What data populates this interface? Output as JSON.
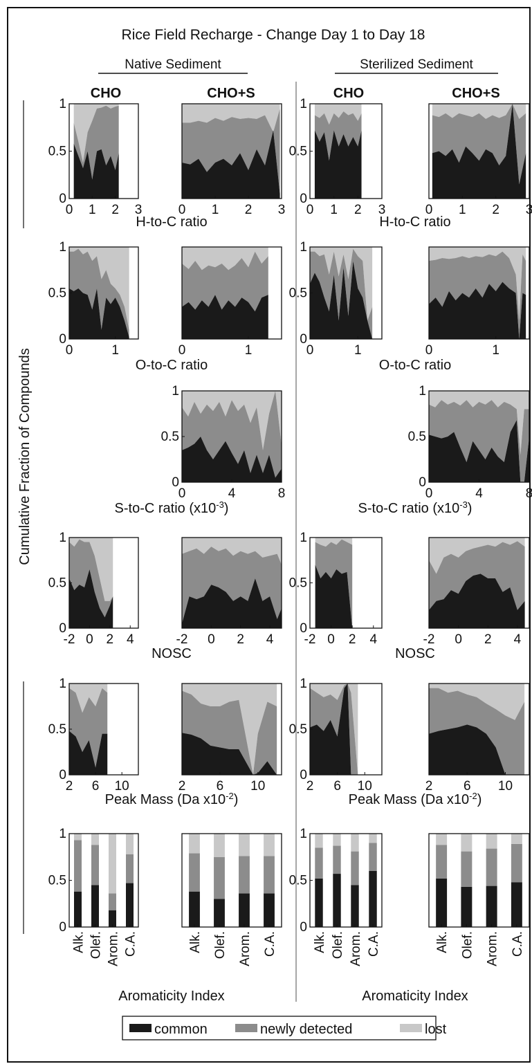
{
  "figure": {
    "title": "Rice Field Recharge - Change Day 1 to Day 18",
    "y_axis_label": "Cumulative Fraction of Compounds",
    "groups": [
      "Native Sediment",
      "Sterilized Sediment"
    ],
    "column_headers": [
      "CHO",
      "CHO+S",
      "CHO",
      "CHO+S"
    ],
    "rows": [
      {
        "id": "hc",
        "xlabel": "H-to-C ratio",
        "xticks": [
          "0",
          "1",
          "2",
          "3"
        ],
        "xlim": [
          0,
          3
        ]
      },
      {
        "id": "oc",
        "xlabel": "O-to-C ratio",
        "xticks": [
          "0",
          "1"
        ],
        "xlim": [
          0,
          1.5
        ]
      },
      {
        "id": "sc",
        "xlabel": "S-to-C ratio (x10",
        "xlabel_sup": "-3",
        "xlabel_tail": ")",
        "xticks": [
          "0",
          "4",
          "8"
        ],
        "xlim": [
          0,
          8
        ]
      },
      {
        "id": "nosc",
        "xlabel": "NOSC",
        "xticks": [
          "-2",
          "0",
          "2",
          "4"
        ],
        "xlim": [
          -2,
          4.8
        ]
      },
      {
        "id": "mass",
        "xlabel": "Peak Mass (Da x10",
        "xlabel_sup": "-2",
        "xlabel_tail": ")",
        "xticks": [
          "2",
          "6",
          "10"
        ],
        "xlim": [
          2,
          12.5
        ]
      },
      {
        "id": "arom",
        "xlabel": "Aromaticity Index",
        "xticks": [
          "Alk.",
          "Olef.",
          "Arom.",
          "C.A."
        ]
      }
    ],
    "yticks": [
      "0",
      "0.5",
      "1"
    ],
    "legend": [
      {
        "label": "common",
        "color": "#1a1a1a"
      },
      {
        "label": "newly detected",
        "color": "#8c8c8c"
      },
      {
        "label": "lost",
        "color": "#c8c8c8"
      }
    ]
  },
  "chart_data": [
    {
      "type": "area",
      "panel": "native-cho-hc",
      "x": [
        0.2,
        0.4,
        0.6,
        0.8,
        1.0,
        1.2,
        1.4,
        1.6,
        1.8,
        2.0,
        2.15
      ],
      "common": [
        0.58,
        0.45,
        0.32,
        0.5,
        0.2,
        0.5,
        0.52,
        0.35,
        0.45,
        0.3,
        0.48
      ],
      "cum_new": [
        0.8,
        0.6,
        0.38,
        0.7,
        0.82,
        0.95,
        0.96,
        0.98,
        0.95,
        0.97,
        0.98
      ],
      "xlim": [
        0,
        3
      ],
      "ylim": [
        0,
        1
      ]
    },
    {
      "type": "area",
      "panel": "native-chos-hc",
      "x": [
        0,
        0.25,
        0.5,
        0.75,
        1.0,
        1.25,
        1.5,
        1.75,
        2.0,
        2.25,
        2.5,
        2.75,
        2.95
      ],
      "common": [
        0.38,
        0.36,
        0.42,
        0.28,
        0.38,
        0.42,
        0.35,
        0.48,
        0.3,
        0.52,
        0.35,
        0.72,
        0.05
      ],
      "cum_new": [
        0.8,
        0.8,
        0.82,
        0.8,
        0.85,
        0.82,
        0.86,
        0.84,
        0.85,
        0.84,
        0.88,
        0.7,
        0.95
      ],
      "xlim": [
        0,
        3
      ],
      "ylim": [
        0,
        1
      ]
    },
    {
      "type": "area",
      "panel": "steril-cho-hc",
      "x": [
        0.2,
        0.4,
        0.6,
        0.8,
        1.0,
        1.2,
        1.4,
        1.6,
        1.8,
        2.0,
        2.15
      ],
      "common": [
        0.72,
        0.6,
        0.7,
        0.4,
        0.72,
        0.55,
        0.68,
        0.55,
        0.65,
        0.55,
        0.72
      ],
      "cum_new": [
        0.88,
        0.85,
        0.9,
        0.78,
        0.9,
        0.85,
        0.92,
        0.88,
        0.9,
        0.82,
        0.9
      ],
      "xlim": [
        0,
        3
      ],
      "ylim": [
        0,
        1
      ]
    },
    {
      "type": "area",
      "panel": "steril-chos-hc",
      "x": [
        0.1,
        0.3,
        0.5,
        0.7,
        0.9,
        1.1,
        1.3,
        1.5,
        1.7,
        1.9,
        2.1,
        2.3,
        2.5,
        2.7,
        2.9
      ],
      "common": [
        0.48,
        0.5,
        0.45,
        0.52,
        0.38,
        0.55,
        0.48,
        0.4,
        0.52,
        0.48,
        0.35,
        0.45,
        1.0,
        0.15,
        0.48
      ],
      "cum_new": [
        0.88,
        0.86,
        0.9,
        0.85,
        0.9,
        0.88,
        0.86,
        0.9,
        0.84,
        0.88,
        0.85,
        0.88,
        1.0,
        0.84,
        0.9
      ],
      "xlim": [
        0,
        3
      ],
      "ylim": [
        0,
        1
      ]
    },
    {
      "type": "area",
      "panel": "native-cho-oc",
      "x": [
        0,
        0.1,
        0.2,
        0.3,
        0.4,
        0.5,
        0.6,
        0.7,
        0.8,
        0.9,
        1.0,
        1.1,
        1.2,
        1.3
      ],
      "common": [
        0.55,
        0.52,
        0.55,
        0.5,
        0.48,
        0.32,
        0.55,
        0.1,
        0.45,
        0.38,
        0.45,
        0.35,
        0.2,
        0.02
      ],
      "cum_new": [
        0.95,
        0.95,
        0.98,
        0.92,
        0.95,
        0.85,
        0.9,
        0.65,
        0.75,
        0.6,
        0.55,
        0.48,
        0.35,
        0.1
      ],
      "xlim": [
        0,
        1.5
      ],
      "ylim": [
        0,
        1
      ]
    },
    {
      "type": "area",
      "panel": "native-chos-oc",
      "x": [
        0,
        0.1,
        0.2,
        0.3,
        0.4,
        0.5,
        0.6,
        0.7,
        0.8,
        0.9,
        1.0,
        1.1,
        1.2,
        1.3
      ],
      "common": [
        0.35,
        0.4,
        0.32,
        0.42,
        0.35,
        0.48,
        0.32,
        0.42,
        0.35,
        0.45,
        0.4,
        0.3,
        0.45,
        0.48
      ],
      "cum_new": [
        0.82,
        0.76,
        0.85,
        0.75,
        0.8,
        0.78,
        0.82,
        0.75,
        0.8,
        0.88,
        0.78,
        0.95,
        0.82,
        0.9
      ],
      "xlim": [
        0,
        1.5
      ],
      "ylim": [
        0,
        1
      ]
    },
    {
      "type": "area",
      "panel": "steril-cho-oc",
      "x": [
        0,
        0.1,
        0.2,
        0.3,
        0.4,
        0.5,
        0.6,
        0.7,
        0.8,
        0.9,
        1.0,
        1.1,
        1.2,
        1.3
      ],
      "common": [
        0.6,
        0.72,
        0.62,
        0.45,
        0.3,
        0.7,
        0.2,
        0.78,
        0.25,
        0.85,
        0.55,
        0.45,
        0.2,
        0.0
      ],
      "cum_new": [
        0.95,
        0.95,
        0.9,
        0.92,
        0.7,
        0.95,
        0.68,
        0.92,
        0.65,
        0.98,
        0.9,
        0.85,
        0.2,
        0.35
      ],
      "xlim": [
        0,
        1.5
      ],
      "ylim": [
        0,
        1
      ]
    },
    {
      "type": "area",
      "panel": "steril-chos-oc",
      "x": [
        0,
        0.1,
        0.2,
        0.3,
        0.4,
        0.5,
        0.6,
        0.7,
        0.8,
        0.9,
        1.0,
        1.1,
        1.2,
        1.3,
        1.35,
        1.4,
        1.45
      ],
      "common": [
        0.38,
        0.45,
        0.35,
        0.52,
        0.42,
        0.5,
        0.45,
        0.55,
        0.45,
        0.6,
        0.52,
        0.62,
        0.55,
        0.5,
        0.0,
        0.5,
        0.48
      ],
      "cum_new": [
        0.85,
        0.86,
        0.88,
        0.87,
        0.88,
        0.9,
        0.88,
        0.9,
        0.89,
        0.92,
        0.9,
        0.95,
        0.88,
        0.7,
        0.2,
        0.92,
        0.85
      ],
      "xlim": [
        0,
        1.5
      ],
      "ylim": [
        0,
        1
      ]
    },
    {
      "type": "area",
      "panel": "native-chos-sc",
      "x": [
        0,
        0.5,
        1.0,
        1.5,
        2.0,
        2.5,
        3.0,
        3.5,
        4.0,
        4.5,
        5.0,
        5.5,
        6.0,
        6.5,
        7.0,
        7.5,
        8.0
      ],
      "common": [
        0.35,
        0.38,
        0.42,
        0.5,
        0.35,
        0.25,
        0.35,
        0.45,
        0.32,
        0.2,
        0.35,
        0.1,
        0.3,
        0.1,
        0.3,
        0.05,
        0.15
      ],
      "cum_new": [
        0.82,
        0.72,
        0.88,
        0.75,
        0.85,
        0.78,
        0.88,
        0.72,
        0.9,
        0.78,
        0.85,
        0.65,
        0.82,
        0.35,
        0.75,
        1.0,
        0.4
      ],
      "xlim": [
        0,
        8
      ],
      "ylim": [
        0,
        1
      ]
    },
    {
      "type": "area",
      "panel": "steril-chos-sc",
      "x": [
        0,
        0.5,
        1.0,
        1.5,
        2.0,
        2.5,
        3.0,
        3.5,
        4.0,
        4.5,
        5.0,
        5.5,
        6.0,
        6.5,
        7.0,
        7.3,
        7.6,
        8.0
      ],
      "common": [
        0.52,
        0.5,
        0.48,
        0.5,
        0.55,
        0.38,
        0.22,
        0.45,
        0.35,
        0.25,
        0.38,
        0.28,
        0.22,
        0.55,
        0.68,
        0.0,
        0.0,
        0.5
      ],
      "cum_new": [
        0.85,
        0.82,
        0.9,
        0.85,
        0.88,
        0.84,
        0.9,
        0.82,
        0.88,
        0.85,
        0.9,
        0.82,
        0.88,
        0.85,
        0.8,
        0.3,
        0.8,
        0.8
      ],
      "xlim": [
        0,
        8
      ],
      "ylim": [
        0,
        1
      ]
    },
    {
      "type": "area",
      "panel": "native-cho-nosc",
      "x": [
        -2,
        -1.5,
        -1.0,
        -0.5,
        0.0,
        0.5,
        1.0,
        1.5,
        2.0,
        2.3
      ],
      "common": [
        0.55,
        0.42,
        0.48,
        0.45,
        0.65,
        0.4,
        0.22,
        0.12,
        0.25,
        0.35
      ],
      "cum_new": [
        0.95,
        0.9,
        0.98,
        0.95,
        0.95,
        0.8,
        0.55,
        0.3,
        0.3,
        0.35
      ],
      "xlim": [
        -2,
        4.8
      ],
      "ylim": [
        0,
        1
      ]
    },
    {
      "type": "area",
      "panel": "native-chos-nosc",
      "x": [
        -2,
        -1.5,
        -1.0,
        -0.5,
        0.0,
        0.5,
        1.0,
        1.5,
        2.0,
        2.5,
        3.0,
        3.5,
        4.0,
        4.5,
        4.8
      ],
      "common": [
        0.05,
        0.35,
        0.32,
        0.35,
        0.48,
        0.45,
        0.4,
        0.3,
        0.35,
        0.3,
        0.55,
        0.3,
        0.35,
        0.1,
        0.22
      ],
      "cum_new": [
        0.82,
        0.85,
        0.88,
        0.82,
        0.9,
        0.85,
        0.88,
        0.8,
        0.85,
        0.82,
        0.85,
        0.78,
        0.8,
        0.82,
        0.7
      ],
      "xlim": [
        -2,
        4.8
      ],
      "ylim": [
        0,
        1
      ]
    },
    {
      "type": "area",
      "panel": "steril-cho-nosc",
      "x": [
        -1.5,
        -1.0,
        -0.5,
        0.0,
        0.5,
        1.0,
        1.5,
        2.0
      ],
      "common": [
        0.7,
        0.55,
        0.62,
        0.55,
        0.65,
        0.6,
        0.62,
        0.0
      ],
      "cum_new": [
        0.95,
        0.92,
        0.9,
        0.95,
        0.92,
        0.98,
        0.95,
        0.92
      ],
      "xlim": [
        -2,
        4.8
      ],
      "ylim": [
        0,
        1
      ]
    },
    {
      "type": "area",
      "panel": "steril-chos-nosc",
      "x": [
        -2,
        -1.5,
        -1.0,
        -0.5,
        0.0,
        0.5,
        1.0,
        1.5,
        2.0,
        2.5,
        3.0,
        3.5,
        4.0,
        4.5
      ],
      "common": [
        0.2,
        0.3,
        0.32,
        0.42,
        0.38,
        0.52,
        0.58,
        0.6,
        0.55,
        0.55,
        0.4,
        0.45,
        0.2,
        0.3
      ],
      "cum_new": [
        0.75,
        0.6,
        0.78,
        0.82,
        0.78,
        0.85,
        0.88,
        0.9,
        0.92,
        0.9,
        0.95,
        0.92,
        0.96,
        0.9
      ],
      "xlim": [
        -2,
        4.8
      ],
      "ylim": [
        0,
        1
      ]
    },
    {
      "type": "area",
      "panel": "native-cho-mass",
      "x": [
        2.0,
        3.0,
        4.0,
        5.0,
        6.0,
        7.0,
        7.8
      ],
      "common": [
        0.48,
        0.42,
        0.25,
        0.38,
        0.08,
        0.45,
        0.45
      ],
      "cum_new": [
        0.95,
        0.9,
        0.68,
        0.85,
        0.75,
        0.95,
        0.9
      ],
      "xlim": [
        2,
        12.5
      ],
      "ylim": [
        0,
        1
      ]
    },
    {
      "type": "area",
      "panel": "native-chos-mass",
      "x": [
        2.0,
        3.0,
        4.0,
        5.0,
        6.0,
        7.0,
        8.0,
        9.5,
        10.0,
        11.0,
        12.0
      ],
      "common": [
        0.46,
        0.44,
        0.4,
        0.32,
        0.3,
        0.28,
        0.28,
        0.0,
        0.02,
        0.15,
        0.0
      ],
      "cum_new": [
        0.92,
        0.88,
        0.78,
        0.75,
        0.75,
        0.8,
        0.82,
        0.0,
        0.45,
        0.8,
        0.75
      ],
      "xlim": [
        2,
        12.5
      ],
      "ylim": [
        0,
        1
      ]
    },
    {
      "type": "area",
      "panel": "steril-cho-mass",
      "x": [
        2.0,
        3.0,
        4.0,
        5.0,
        6.0,
        7.0,
        7.5,
        8.0,
        9.0
      ],
      "common": [
        0.52,
        0.55,
        0.48,
        0.6,
        0.42,
        0.95,
        1.0,
        0.0,
        0.0
      ],
      "cum_new": [
        0.95,
        0.9,
        0.85,
        0.88,
        0.82,
        0.98,
        1.0,
        0.9,
        0.0
      ],
      "xlim": [
        2,
        12.5
      ],
      "ylim": [
        0,
        1
      ]
    },
    {
      "type": "area",
      "panel": "steril-chos-mass",
      "x": [
        2.0,
        3.0,
        4.0,
        5.0,
        6.0,
        7.0,
        8.0,
        9.0,
        10.0,
        11.0,
        12.0
      ],
      "common": [
        0.45,
        0.48,
        0.5,
        0.52,
        0.55,
        0.52,
        0.45,
        0.3,
        0.0,
        0.0,
        0.0
      ],
      "cum_new": [
        0.95,
        0.95,
        0.9,
        0.92,
        0.88,
        0.85,
        0.78,
        0.72,
        0.65,
        0.6,
        0.8
      ],
      "xlim": [
        2,
        12.5
      ],
      "ylim": [
        0,
        1
      ]
    },
    {
      "type": "bar",
      "panel": "native-cho-arom",
      "categories": [
        "Alk.",
        "Olef.",
        "Arom.",
        "C.A."
      ],
      "series": [
        {
          "name": "common",
          "values": [
            0.38,
            0.45,
            0.18,
            0.47
          ]
        },
        {
          "name": "newly detected",
          "values": [
            0.55,
            0.43,
            0.18,
            0.31
          ]
        },
        {
          "name": "lost",
          "values": [
            0.07,
            0.12,
            0.64,
            0.22
          ]
        }
      ],
      "ylim": [
        0,
        1
      ]
    },
    {
      "type": "bar",
      "panel": "native-chos-arom",
      "categories": [
        "Alk.",
        "Olef.",
        "Arom.",
        "C.A."
      ],
      "series": [
        {
          "name": "common",
          "values": [
            0.38,
            0.3,
            0.36,
            0.36
          ]
        },
        {
          "name": "newly detected",
          "values": [
            0.41,
            0.45,
            0.4,
            0.4
          ]
        },
        {
          "name": "lost",
          "values": [
            0.21,
            0.25,
            0.24,
            0.24
          ]
        }
      ],
      "ylim": [
        0,
        1
      ]
    },
    {
      "type": "bar",
      "panel": "steril-cho-arom",
      "categories": [
        "Alk.",
        "Olef.",
        "Arom.",
        "C.A."
      ],
      "series": [
        {
          "name": "common",
          "values": [
            0.52,
            0.57,
            0.45,
            0.6
          ]
        },
        {
          "name": "newly detected",
          "values": [
            0.33,
            0.3,
            0.36,
            0.3
          ]
        },
        {
          "name": "lost",
          "values": [
            0.15,
            0.13,
            0.19,
            0.1
          ]
        }
      ],
      "ylim": [
        0,
        1
      ]
    },
    {
      "type": "bar",
      "panel": "steril-chos-arom",
      "categories": [
        "Alk.",
        "Olef.",
        "Arom.",
        "C.A."
      ],
      "series": [
        {
          "name": "common",
          "values": [
            0.52,
            0.43,
            0.44,
            0.48
          ]
        },
        {
          "name": "newly detected",
          "values": [
            0.36,
            0.38,
            0.4,
            0.41
          ]
        },
        {
          "name": "lost",
          "values": [
            0.12,
            0.19,
            0.16,
            0.11
          ]
        }
      ],
      "ylim": [
        0,
        1
      ]
    }
  ]
}
